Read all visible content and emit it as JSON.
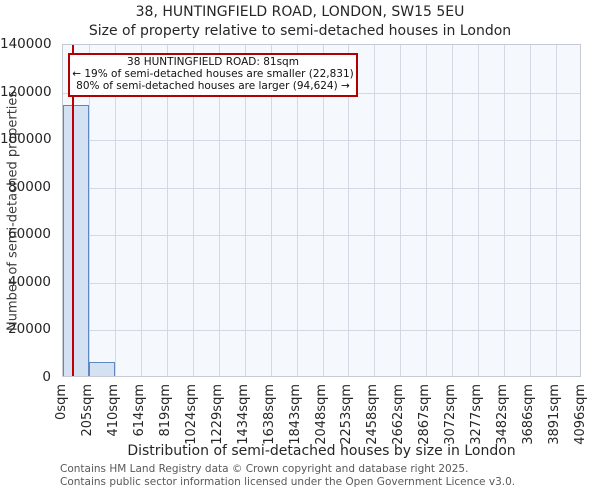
{
  "header": {
    "title": "38, HUNTINGFIELD ROAD, LONDON, SW15 5EU",
    "subtitle": "Size of property relative to semi-detached houses in London"
  },
  "chart_data": {
    "type": "bar",
    "title": "38, HUNTINGFIELD ROAD, LONDON, SW15 5EU",
    "subtitle": "Size of property relative to semi-detached houses in London",
    "xlabel": "Distribution of semi-detached houses by size in London",
    "ylabel": "Number of semi-detached properties",
    "ylim": [
      0,
      140000
    ],
    "y_ticks": [
      0,
      20000,
      40000,
      60000,
      80000,
      100000,
      120000,
      140000
    ],
    "x_tick_labels": [
      "0sqm",
      "205sqm",
      "410sqm",
      "614sqm",
      "819sqm",
      "1024sqm",
      "1229sqm",
      "1434sqm",
      "1638sqm",
      "1843sqm",
      "2048sqm",
      "2253sqm",
      "2458sqm",
      "2662sqm",
      "2867sqm",
      "3072sqm",
      "3277sqm",
      "3482sqm",
      "3686sqm",
      "3891sqm",
      "4096sqm"
    ],
    "xlim_sqm": [
      0,
      4096
    ],
    "bin_width_sqm": 204.8,
    "values": [
      114000,
      5900,
      0,
      0,
      0,
      0,
      0,
      0,
      0,
      0,
      0,
      0,
      0,
      0,
      0,
      0,
      0,
      0,
      0,
      0
    ],
    "grid": true,
    "legend": null,
    "marker": {
      "x_sqm": 81,
      "color": "#c00000"
    },
    "annotation": {
      "line1": "38 HUNTINGFIELD ROAD: 81sqm",
      "line2": "← 19% of semi-detached houses are smaller (22,831)",
      "line3": "80% of semi-detached houses are larger (94,624) →",
      "border_color": "#b00000"
    },
    "colors": {
      "bar_fill": "#d4e1f2",
      "bar_edge": "#5e88c2",
      "plot_bg": "#f5f8fd",
      "grid": "#d4d8e2",
      "marker_line": "#c00000",
      "annotation_border": "#b00000"
    }
  },
  "footer": {
    "line1": "Contains HM Land Registry data © Crown copyright and database right 2025.",
    "line2": "Contains public sector information licensed under the Open Government Licence v3.0."
  }
}
